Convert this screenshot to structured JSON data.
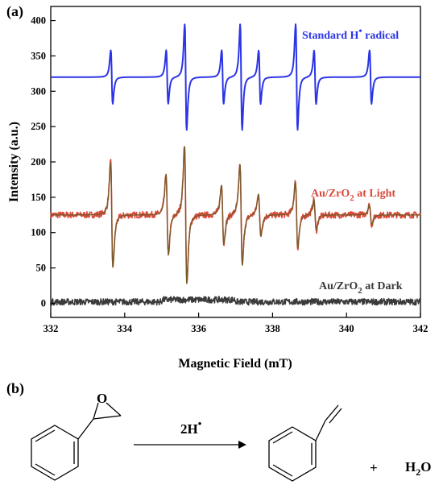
{
  "panel_a_label": "(a)",
  "panel_b_label": "(b)",
  "chart_data": {
    "type": "line",
    "xlabel": "Magnetic Field (mT)",
    "ylabel": "Intensity (a.u.)",
    "xlim": [
      332,
      342
    ],
    "ylim": [
      -20,
      420
    ],
    "x_ticks": [
      "332",
      "334",
      "336",
      "338",
      "340",
      "342"
    ],
    "y_ticks": [
      "0",
      "50",
      "100",
      "150",
      "200",
      "250",
      "300",
      "350",
      "400"
    ],
    "grid": false,
    "series": [
      {
        "label_main": "Standard H",
        "label_sup": "•",
        "label_tail": " radical",
        "color": "#2b34e6",
        "baseline": 320,
        "lines": [
          {
            "x": 333.65,
            "amp": 38
          },
          {
            "x": 335.15,
            "amp": 38
          },
          {
            "x": 335.65,
            "amp": 75
          },
          {
            "x": 336.65,
            "amp": 38
          },
          {
            "x": 337.15,
            "amp": 75
          },
          {
            "x": 337.65,
            "amp": 38
          },
          {
            "x": 338.65,
            "amp": 75
          },
          {
            "x": 339.15,
            "amp": 38
          },
          {
            "x": 340.65,
            "amp": 38
          }
        ]
      },
      {
        "label_main": "Au/ZrO",
        "label_sub": "2",
        "label_tail": " at Light",
        "color": "#d84a3a",
        "fit_color": "#7a5a2a",
        "baseline": 125,
        "lines": [
          {
            "x": 333.65,
            "amp": 75
          },
          {
            "x": 335.15,
            "amp": 58
          },
          {
            "x": 335.65,
            "amp": 98
          },
          {
            "x": 336.65,
            "amp": 42
          },
          {
            "x": 337.15,
            "amp": 72
          },
          {
            "x": 337.65,
            "amp": 30
          },
          {
            "x": 338.65,
            "amp": 47
          },
          {
            "x": 339.15,
            "amp": 22
          },
          {
            "x": 340.65,
            "amp": 14
          }
        ]
      },
      {
        "label_main": "Au/ZrO",
        "label_sub": "2",
        "label_tail": " at Dark",
        "color": "#3a3a3a",
        "baseline": 2,
        "lines": []
      }
    ]
  },
  "reaction": {
    "reagent_main": "2H",
    "reagent_sup": "•",
    "plus": "+",
    "product2_main": "H",
    "product2_sub": "2",
    "product2_tail": "O",
    "epoxide_o": "O"
  }
}
